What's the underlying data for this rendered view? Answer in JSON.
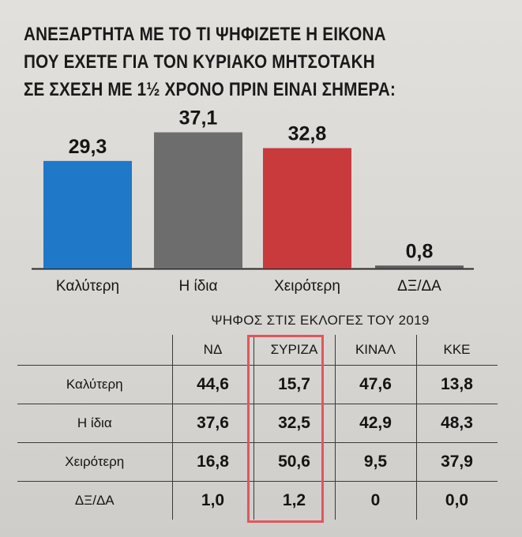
{
  "title_lines": [
    "ΑΝΕΞΑΡΤΗΤΑ ΜΕ ΤΟ ΤΙ ΨΗΦΙΖΕΤΕ Η ΕΙΚΟΝΑ",
    "ΠΟΥ ΕΧΕΤΕ ΓΙΑ ΤΟΝ ΚΥΡΙΑΚΟ ΜΗΤΣΟΤΑΚΗ",
    "ΣΕ ΣΧΕΣΗ ΜΕ 1½ ΧΡΟΝΟ ΠΡΙΝ ΕΙΝΑΙ ΣΗΜΕΡΑ:"
  ],
  "chart_data": [
    {
      "type": "bar",
      "title": "ΑΝΕΞΑΡΤΗΤΑ ΜΕ ΤΟ ΤΙ ΨΗΦΙΖΕΤΕ Η ΕΙΚΟΝΑ ΠΟΥ ΕΧΕΤΕ ΓΙΑ ΤΟΝ ΚΥΡΙΑΚΟ ΜΗΤΣΟΤΑΚΗ ΣΕ ΣΧΕΣΗ ΜΕ 1½ ΧΡΟΝΟ ΠΡΙΝ ΕΙΝΑΙ ΣΗΜΕΡΑ:",
      "categories": [
        "Καλύτερη",
        "Η ίδια",
        "Χειρότερη",
        "ΔΞ/ΔΑ"
      ],
      "values": [
        29.3,
        37.1,
        32.8,
        0.8
      ],
      "value_labels": [
        "29,3",
        "37,1",
        "32,8",
        "0,8"
      ],
      "colors": [
        "#1f78c8",
        "#6d6d6d",
        "#c83a3c",
        "#5c5c5c"
      ],
      "ylim": [
        0,
        40
      ],
      "grid": false,
      "legend": false
    },
    {
      "type": "table",
      "title": "ΨΗΦΟΣ ΣΤΙΣ ΕΚΛΟΓΕΣ ΤΟΥ 2019",
      "columns": [
        "ΝΔ",
        "ΣΥΡΙΖΑ",
        "ΚΙΝΑΛ",
        "ΚΚΕ"
      ],
      "rows": [
        {
          "label": "Καλύτερη",
          "values": [
            "44,6",
            "15,7",
            "47,6",
            "13,8"
          ]
        },
        {
          "label": "Η ίδια",
          "values": [
            "37,6",
            "32,5",
            "42,9",
            "48,3"
          ]
        },
        {
          "label": "Χειρότερη",
          "values": [
            "16,8",
            "50,6",
            "9,5",
            "37,9"
          ]
        },
        {
          "label": "ΔΞ/ΔΑ",
          "values": [
            "1,0",
            "1,2",
            "0",
            "0,0"
          ]
        }
      ],
      "highlighted_column": "ΣΥΡΙΖΑ",
      "highlight_color": "#e0565e"
    }
  ]
}
